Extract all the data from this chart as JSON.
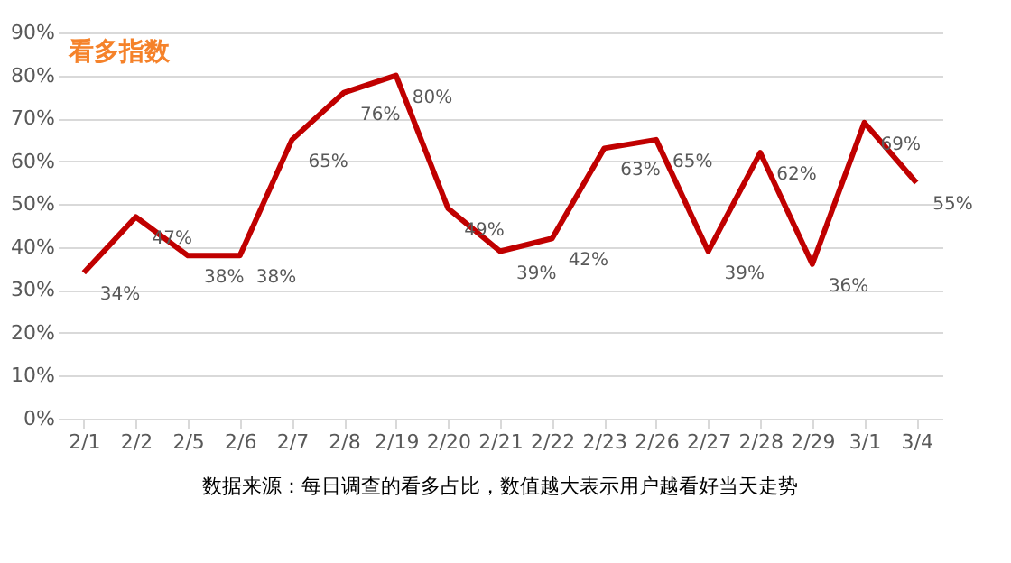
{
  "chart_data": {
    "type": "line",
    "title": "看多指数",
    "categories": [
      "2/1",
      "2/2",
      "2/5",
      "2/6",
      "2/7",
      "2/8",
      "2/19",
      "2/20",
      "2/21",
      "2/22",
      "2/23",
      "2/26",
      "2/27",
      "2/28",
      "2/29",
      "3/1",
      "3/4"
    ],
    "series": [
      {
        "color": "#c00000",
        "values": [
          34,
          47,
          38,
          38,
          65,
          76,
          80,
          49,
          39,
          42,
          63,
          65,
          39,
          62,
          36,
          69,
          55
        ],
        "value_labels": [
          "34%",
          "47%",
          "38%",
          "38%",
          "65%",
          "76%",
          "80%",
          "49%",
          "39%",
          "42%",
          "63%",
          "65%",
          "39%",
          "62%",
          "36%",
          "69%",
          "55%"
        ]
      }
    ],
    "ylim": [
      0,
      90
    ],
    "yticks": [
      {
        "value": 0,
        "label": "0%"
      },
      {
        "value": 10,
        "label": "10%"
      },
      {
        "value": 20,
        "label": "20%"
      },
      {
        "value": 30,
        "label": "30%"
      },
      {
        "value": 40,
        "label": "40%"
      },
      {
        "value": 50,
        "label": "50%"
      },
      {
        "value": 60,
        "label": "60%"
      },
      {
        "value": 70,
        "label": "70%"
      },
      {
        "value": 80,
        "label": "80%"
      },
      {
        "value": 90,
        "label": "90%"
      }
    ],
    "grid": "y",
    "marker": "none",
    "line_style": "solid",
    "annotations": [
      "数据来源：每日调查的看多占比，数值越大表示用户越看好当天走势"
    ]
  }
}
